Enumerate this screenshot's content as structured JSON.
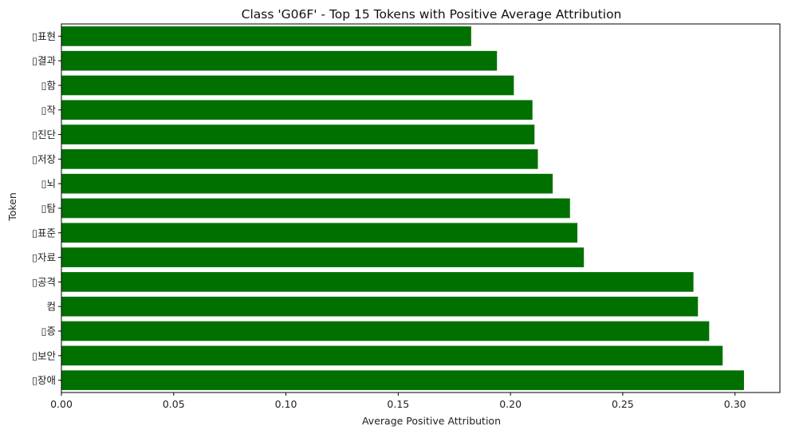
{
  "chart_data": {
    "type": "bar",
    "orientation": "horizontal",
    "title": "Class 'G06F' - Top 15 Tokens with Positive Average Attribution",
    "xlabel": "Average Positive Attribution",
    "ylabel": "Token",
    "xlim": [
      0.0,
      0.32
    ],
    "xticks": [
      "0.00",
      "0.05",
      "0.10",
      "0.15",
      "0.20",
      "0.25",
      "0.30"
    ],
    "categories": [
      "▯표현",
      "▯결과",
      "▯함",
      "▯작",
      "▯진단",
      "▯저장",
      "▯뇌",
      "▯탐",
      "▯표준",
      "▯자료",
      "▯공격",
      "컴",
      "▯증",
      "▯보안",
      "▯장애"
    ],
    "values": [
      0.1825,
      0.194,
      0.2015,
      0.2098,
      0.2107,
      0.2122,
      0.2188,
      0.2265,
      0.2298,
      0.2327,
      0.2815,
      0.2835,
      0.2885,
      0.2945,
      0.304
    ],
    "bar_color": "#007000",
    "grid": false
  }
}
